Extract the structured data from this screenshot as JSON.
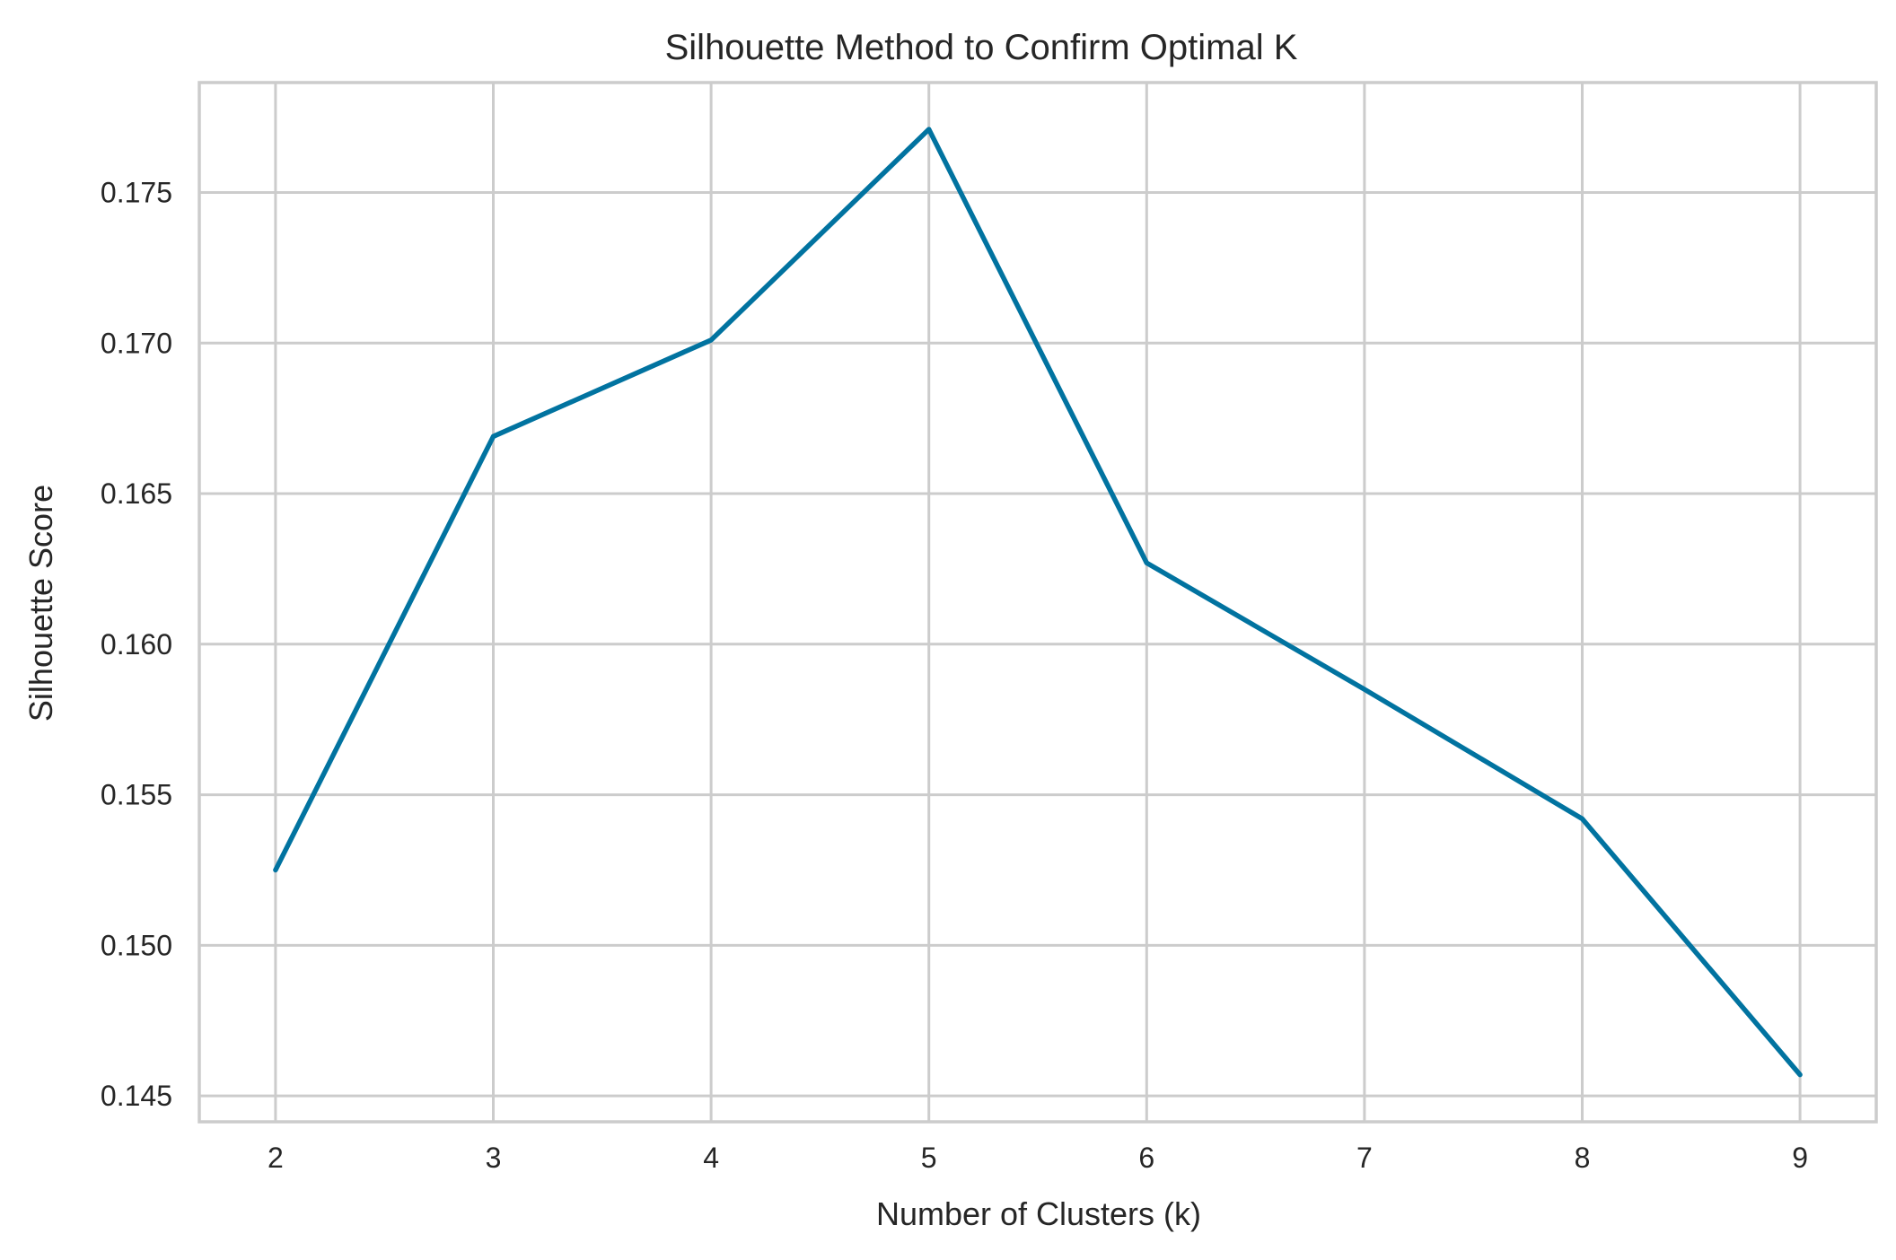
{
  "chart_data": {
    "type": "line",
    "title": "Silhouette Method to Confirm Optimal K",
    "xlabel": "Number of Clusters (k)",
    "ylabel": "Silhouette Score",
    "x": [
      2,
      3,
      4,
      5,
      6,
      7,
      8,
      9
    ],
    "series": [
      {
        "values": [
          0.1525,
          0.1669,
          0.1701,
          0.1771,
          0.1627,
          0.1585,
          0.1542,
          0.1457
        ]
      }
    ],
    "xticks": [
      2,
      3,
      4,
      5,
      6,
      7,
      8,
      9
    ],
    "xtick_labels": [
      "2",
      "3",
      "4",
      "5",
      "6",
      "7",
      "8",
      "9"
    ],
    "yticks": [
      0.145,
      0.15,
      0.155,
      0.16,
      0.165,
      0.17,
      0.175
    ],
    "ytick_labels": [
      "0.145",
      "0.150",
      "0.155",
      "0.160",
      "0.165",
      "0.170",
      "0.175"
    ],
    "xlim": [
      1.65,
      9.35
    ],
    "ylim": [
      0.144138,
      0.178652
    ],
    "grid": true,
    "colors": {
      "line": "#0173a0",
      "grid": "#cccccc",
      "text": "#262626"
    }
  }
}
